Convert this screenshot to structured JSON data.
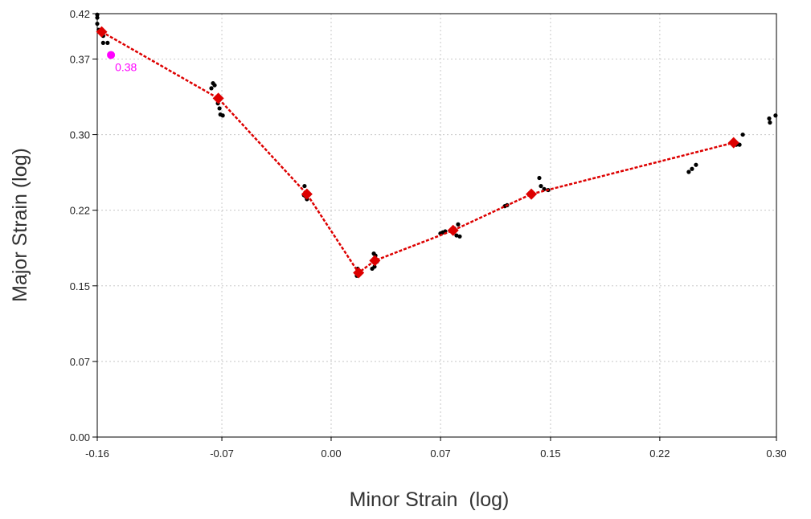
{
  "chart_data": {
    "type": "scatter",
    "xlabel": "Minor Strain  (log)",
    "ylabel": "Major Strain (log)",
    "xlim": [
      -0.16,
      0.3
    ],
    "ylim": [
      0.0,
      0.42
    ],
    "grid": true,
    "x_ticks": [
      {
        "value": -0.16,
        "label": "-0.16"
      },
      {
        "value": -0.0756,
        "label": "-0.07"
      },
      {
        "value": -0.0016,
        "label": "0.00"
      },
      {
        "value": 0.0725,
        "label": "0.07"
      },
      {
        "value": 0.147,
        "label": "0.15"
      },
      {
        "value": 0.221,
        "label": "0.22"
      },
      {
        "value": 0.3,
        "label": "0.30"
      }
    ],
    "y_ticks": [
      {
        "value": 0.0,
        "label": "0.00"
      },
      {
        "value": 0.075,
        "label": "0.07"
      },
      {
        "value": 0.15,
        "label": "0.15"
      },
      {
        "value": 0.225,
        "label": "0.22"
      },
      {
        "value": 0.3,
        "label": "0.30"
      },
      {
        "value": 0.375,
        "label": "0.37"
      },
      {
        "value": 0.42,
        "label": "0.42"
      }
    ],
    "colors": {
      "points": "#000000",
      "curve": "#dd0000",
      "highlight": "#ff00ff"
    },
    "points": [
      [
        -0.16,
        0.419
      ],
      [
        -0.16,
        0.416
      ],
      [
        -0.16,
        0.41
      ],
      [
        -0.159,
        0.404
      ],
      [
        -0.156,
        0.398
      ],
      [
        -0.156,
        0.391
      ],
      [
        -0.153,
        0.391
      ],
      [
        -0.0816,
        0.351
      ],
      [
        -0.0805,
        0.349
      ],
      [
        -0.0827,
        0.346
      ],
      [
        -0.0783,
        0.331
      ],
      [
        -0.0772,
        0.326
      ],
      [
        -0.0766,
        0.32
      ],
      [
        -0.075,
        0.319
      ],
      [
        -0.0789,
        0.336
      ],
      [
        -0.0196,
        0.249
      ],
      [
        -0.019,
        0.239
      ],
      [
        -0.018,
        0.236
      ],
      [
        -0.02,
        0.24
      ],
      [
        0.0164,
        0.167
      ],
      [
        0.0175,
        0.162
      ],
      [
        0.0158,
        0.16
      ],
      [
        0.0169,
        0.164
      ],
      [
        0.0273,
        0.182
      ],
      [
        0.0284,
        0.18
      ],
      [
        0.0262,
        0.167
      ],
      [
        0.0278,
        0.169
      ],
      [
        0.0294,
        0.174
      ],
      [
        0.0724,
        0.202
      ],
      [
        0.074,
        0.203
      ],
      [
        0.0757,
        0.204
      ],
      [
        0.0844,
        0.211
      ],
      [
        0.0833,
        0.2
      ],
      [
        0.0855,
        0.199
      ],
      [
        0.0817,
        0.207
      ],
      [
        0.116,
        0.229
      ],
      [
        0.1176,
        0.23
      ],
      [
        0.1394,
        0.257
      ],
      [
        0.1405,
        0.249
      ],
      [
        0.1427,
        0.246
      ],
      [
        0.1454,
        0.245
      ],
      [
        0.2406,
        0.263
      ],
      [
        0.2428,
        0.266
      ],
      [
        0.2455,
        0.27
      ],
      [
        0.2728,
        0.29
      ],
      [
        0.275,
        0.29
      ],
      [
        0.2772,
        0.3
      ],
      [
        0.2951,
        0.316
      ],
      [
        0.2956,
        0.312
      ],
      [
        0.2994,
        0.319
      ]
    ],
    "curve": [
      [
        -0.157,
        0.402
      ],
      [
        -0.078,
        0.336
      ],
      [
        -0.018,
        0.241
      ],
      [
        0.017,
        0.163
      ],
      [
        0.028,
        0.175
      ],
      [
        0.081,
        0.205
      ],
      [
        0.134,
        0.241
      ],
      [
        0.271,
        0.292
      ]
    ],
    "highlight": {
      "x": -0.1507,
      "y": 0.379,
      "label": "0.38"
    }
  }
}
